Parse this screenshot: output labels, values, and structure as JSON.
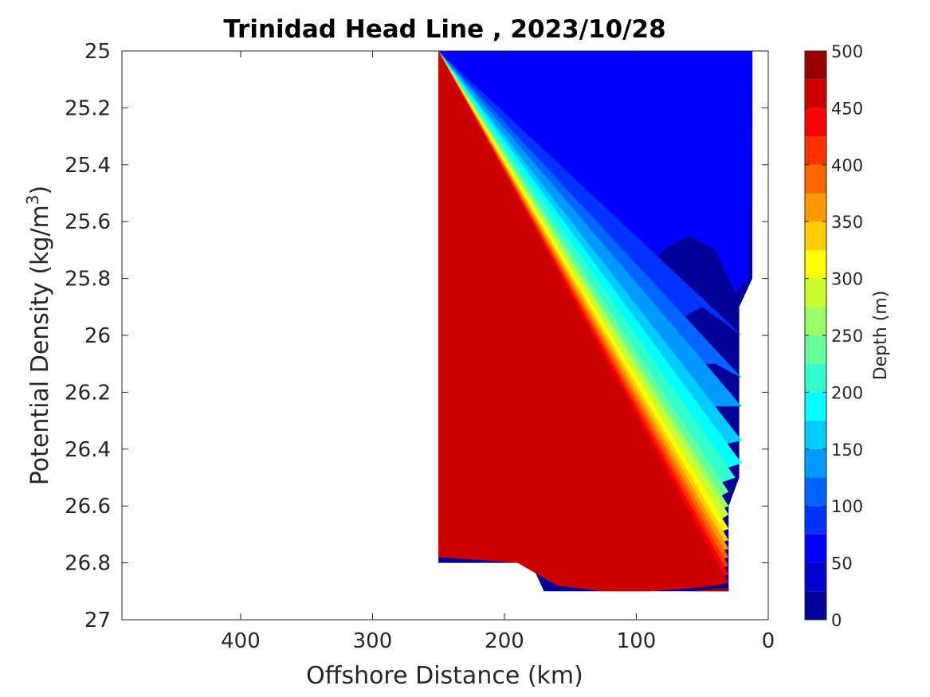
{
  "chart_data": {
    "type": "contour",
    "title": "Trinidad Head Line , 2023/10/28",
    "xlabel": "Offshore Distance (km)",
    "ylabel_main": "Potential Density (kg/m",
    "ylabel_sup": "3",
    "ylabel_close": ")",
    "xlim": [
      490,
      0
    ],
    "ylim": [
      25,
      27
    ],
    "y_reversed": true,
    "x_ticks": [
      400,
      300,
      200,
      100,
      0
    ],
    "x_tick_labels": [
      "400",
      "300",
      "200",
      "100",
      "0"
    ],
    "y_ticks": [
      25,
      25.2,
      25.4,
      25.6,
      25.8,
      26,
      26.2,
      26.4,
      26.6,
      26.8,
      27
    ],
    "y_tick_labels": [
      "25",
      "25.2",
      "25.4",
      "25.6",
      "25.8",
      "26",
      "26.2",
      "26.4",
      "26.6",
      "26.8",
      "27"
    ],
    "colorbar": {
      "label": "Depth (m)",
      "range": [
        0,
        500
      ],
      "step": 25,
      "tick_values": [
        0,
        50,
        100,
        150,
        200,
        250,
        300,
        350,
        400,
        450,
        500
      ],
      "tick_labels": [
        "0",
        "50",
        "100",
        "150",
        "200",
        "250",
        "300",
        "350",
        "400",
        "450",
        "500"
      ],
      "colormap": "jet"
    },
    "depth_contours": [
      {
        "level": 25,
        "points": [
          [
            240,
            25.0
          ],
          [
            218,
            25.0
          ],
          [
            225,
            25.33
          ],
          [
            215,
            25.6
          ],
          [
            202,
            25.65
          ],
          [
            185,
            25.35
          ],
          [
            170,
            25.2
          ],
          [
            140,
            25.2
          ],
          [
            120,
            25.4
          ],
          [
            110,
            25.45
          ],
          [
            95,
            25.35
          ],
          [
            80,
            25.33
          ],
          [
            55,
            25.4
          ],
          [
            30,
            25.61
          ],
          [
            20,
            25.63
          ],
          [
            12,
            25.55
          ],
          [
            12,
            25.0
          ]
        ]
      },
      {
        "level": 50,
        "points": [
          [
            250,
            25.0
          ],
          [
            250,
            25.4
          ],
          [
            240,
            25.33
          ],
          [
            230,
            25.6
          ],
          [
            220,
            25.78
          ],
          [
            200,
            25.96
          ],
          [
            185,
            25.9
          ],
          [
            160,
            25.6
          ],
          [
            140,
            25.75
          ],
          [
            120,
            25.9
          ],
          [
            105,
            25.92
          ],
          [
            80,
            25.7
          ],
          [
            60,
            25.65
          ],
          [
            40,
            25.7
          ],
          [
            25,
            25.85
          ],
          [
            15,
            25.8
          ],
          [
            12,
            25.0
          ]
        ]
      },
      {
        "level": 75,
        "points": [
          [
            250,
            25.0
          ],
          [
            250,
            25.52
          ],
          [
            230,
            25.78
          ],
          [
            210,
            26.05
          ],
          [
            190,
            26.05
          ],
          [
            175,
            26.1
          ],
          [
            150,
            26.1
          ],
          [
            130,
            26.05
          ],
          [
            110,
            26.1
          ],
          [
            90,
            26.05
          ],
          [
            70,
            25.95
          ],
          [
            50,
            25.9
          ],
          [
            35,
            25.95
          ],
          [
            20,
            26.0
          ]
        ]
      },
      {
        "level": 100,
        "points": [
          [
            250,
            25.0
          ],
          [
            250,
            25.82
          ],
          [
            225,
            25.95
          ],
          [
            205,
            26.2
          ],
          [
            190,
            26.15
          ],
          [
            170,
            26.15
          ],
          [
            150,
            26.25
          ],
          [
            120,
            26.27
          ],
          [
            100,
            26.25
          ],
          [
            80,
            26.2
          ],
          [
            60,
            26.1
          ],
          [
            40,
            26.1
          ],
          [
            20,
            26.15
          ]
        ]
      },
      {
        "level": 125,
        "points": [
          [
            250,
            25.0
          ],
          [
            250,
            26.0
          ],
          [
            225,
            26.15
          ],
          [
            200,
            26.3
          ],
          [
            180,
            26.3
          ],
          [
            160,
            26.35
          ],
          [
            130,
            26.4
          ],
          [
            100,
            26.4
          ],
          [
            80,
            26.35
          ],
          [
            60,
            26.3
          ],
          [
            40,
            26.25
          ],
          [
            20,
            26.25
          ]
        ]
      },
      {
        "level": 150,
        "points": [
          [
            250,
            25.0
          ],
          [
            250,
            26.15
          ],
          [
            225,
            26.3
          ],
          [
            200,
            26.38
          ],
          [
            175,
            26.4
          ],
          [
            150,
            26.45
          ],
          [
            120,
            26.5
          ],
          [
            100,
            26.5
          ],
          [
            70,
            26.47
          ],
          [
            50,
            26.4
          ],
          [
            20,
            26.37
          ]
        ]
      },
      {
        "level": 175,
        "points": [
          [
            250,
            25.0
          ],
          [
            250,
            26.28
          ],
          [
            225,
            26.42
          ],
          [
            200,
            26.46
          ],
          [
            170,
            26.5
          ],
          [
            140,
            26.55
          ],
          [
            110,
            26.57
          ],
          [
            80,
            26.55
          ],
          [
            55,
            26.5
          ],
          [
            20,
            26.45
          ]
        ]
      },
      {
        "level": 200,
        "points": [
          [
            250,
            25.0
          ],
          [
            250,
            26.38
          ],
          [
            225,
            26.48
          ],
          [
            195,
            26.53
          ],
          [
            165,
            26.58
          ],
          [
            135,
            26.62
          ],
          [
            105,
            26.62
          ],
          [
            80,
            26.6
          ],
          [
            55,
            26.55
          ],
          [
            25,
            26.5
          ]
        ]
      },
      {
        "level": 225,
        "points": [
          [
            250,
            25.0
          ],
          [
            250,
            26.45
          ],
          [
            220,
            26.52
          ],
          [
            190,
            26.6
          ],
          [
            160,
            26.65
          ],
          [
            130,
            26.68
          ],
          [
            100,
            26.67
          ],
          [
            75,
            26.65
          ],
          [
            50,
            26.6
          ],
          [
            30,
            26.55
          ]
        ]
      },
      {
        "level": 250,
        "points": [
          [
            250,
            25.0
          ],
          [
            250,
            26.5
          ],
          [
            220,
            26.57
          ],
          [
            185,
            26.63
          ],
          [
            155,
            26.7
          ],
          [
            125,
            26.72
          ],
          [
            95,
            26.7
          ],
          [
            70,
            26.68
          ],
          [
            45,
            26.63
          ],
          [
            30,
            26.6
          ]
        ]
      },
      {
        "level": 275,
        "points": [
          [
            250,
            25.0
          ],
          [
            250,
            26.55
          ],
          [
            215,
            26.6
          ],
          [
            180,
            26.67
          ],
          [
            150,
            26.73
          ],
          [
            120,
            26.75
          ],
          [
            90,
            26.73
          ],
          [
            65,
            26.7
          ],
          [
            40,
            26.66
          ],
          [
            30,
            26.63
          ]
        ]
      },
      {
        "level": 300,
        "points": [
          [
            250,
            25.0
          ],
          [
            250,
            26.6
          ],
          [
            210,
            26.64
          ],
          [
            180,
            26.7
          ],
          [
            150,
            26.76
          ],
          [
            120,
            26.78
          ],
          [
            90,
            26.76
          ],
          [
            60,
            26.73
          ],
          [
            40,
            26.7
          ],
          [
            30,
            26.68
          ]
        ]
      },
      {
        "level": 325,
        "points": [
          [
            250,
            25.0
          ],
          [
            250,
            26.63
          ],
          [
            210,
            26.67
          ],
          [
            175,
            26.73
          ],
          [
            145,
            26.79
          ],
          [
            115,
            26.8
          ],
          [
            85,
            26.79
          ],
          [
            60,
            26.76
          ],
          [
            30,
            26.72
          ]
        ]
      },
      {
        "level": 350,
        "points": [
          [
            250,
            25.0
          ],
          [
            250,
            26.66
          ],
          [
            205,
            26.7
          ],
          [
            175,
            26.76
          ],
          [
            145,
            26.81
          ],
          [
            110,
            26.83
          ],
          [
            80,
            26.81
          ],
          [
            55,
            26.79
          ],
          [
            30,
            26.75
          ]
        ]
      },
      {
        "level": 375,
        "points": [
          [
            250,
            25.0
          ],
          [
            250,
            26.69
          ],
          [
            205,
            26.73
          ],
          [
            170,
            26.79
          ],
          [
            140,
            26.84
          ],
          [
            105,
            26.85
          ],
          [
            75,
            26.84
          ],
          [
            50,
            26.81
          ],
          [
            30,
            26.78
          ]
        ]
      },
      {
        "level": 400,
        "points": [
          [
            250,
            25.0
          ],
          [
            250,
            26.72
          ],
          [
            200,
            26.75
          ],
          [
            165,
            26.82
          ],
          [
            135,
            26.86
          ],
          [
            100,
            26.87
          ],
          [
            70,
            26.86
          ],
          [
            45,
            26.83
          ],
          [
            30,
            26.81
          ]
        ]
      },
      {
        "level": 425,
        "points": [
          [
            250,
            25.0
          ],
          [
            250,
            26.75
          ],
          [
            195,
            26.78
          ],
          [
            160,
            26.85
          ],
          [
            130,
            26.88
          ],
          [
            95,
            26.88
          ],
          [
            65,
            26.87
          ],
          [
            40,
            26.86
          ],
          [
            30,
            26.84
          ]
        ]
      },
      {
        "level": 450,
        "points": [
          [
            250,
            25.0
          ],
          [
            250,
            26.78
          ],
          [
            190,
            26.8
          ],
          [
            160,
            26.88
          ],
          [
            125,
            26.9
          ],
          [
            90,
            26.9
          ],
          [
            60,
            26.89
          ],
          [
            40,
            26.88
          ],
          [
            30,
            26.87
          ]
        ]
      },
      {
        "level": 475,
        "points": [
          [
            60,
            26.9
          ],
          [
            40,
            26.89
          ],
          [
            30,
            26.89
          ],
          [
            30,
            26.9
          ]
        ]
      }
    ],
    "data_outline": [
      [
        250,
        25.0
      ],
      [
        12,
        25.0
      ],
      [
        12,
        25.8
      ],
      [
        22,
        25.9
      ],
      [
        22,
        26.5
      ],
      [
        30,
        26.6
      ],
      [
        30,
        26.9
      ],
      [
        170,
        26.9
      ],
      [
        180,
        26.8
      ],
      [
        250,
        26.8
      ]
    ]
  }
}
